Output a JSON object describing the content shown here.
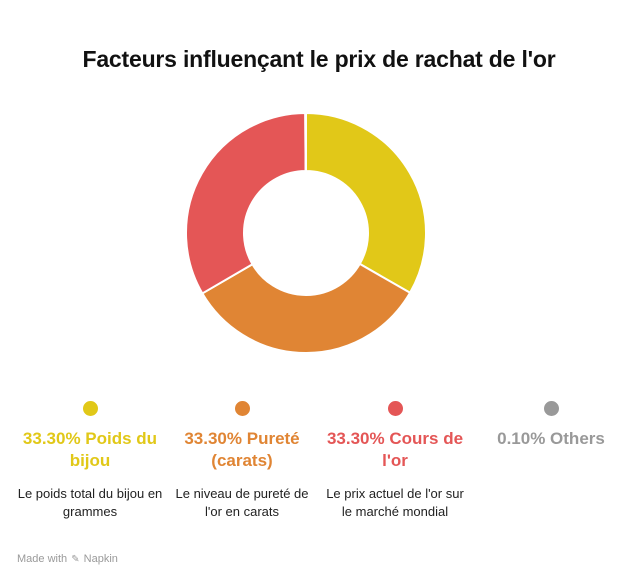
{
  "title": "Facteurs influençant le prix de rachat de l'or",
  "chart_data": {
    "type": "pie",
    "title": "Facteurs influençant le prix de rachat de l'or",
    "slices": [
      {
        "label": "Poids du bijou",
        "pct_label": "33.30% Poids du bijou",
        "value": 33.3,
        "color": "#e1c818",
        "description": "Le poids total du bijou en grammes"
      },
      {
        "label": "Pureté (carats)",
        "pct_label": "33.30% Pureté (carats)",
        "value": 33.3,
        "color": "#e08534",
        "description": "Le niveau de pureté de l'or en carats"
      },
      {
        "label": "Cours de l'or",
        "pct_label": "33.30% Cours de l'or",
        "value": 33.3,
        "color": "#e45656",
        "description": "Le prix actuel de l'or sur le marché mondial"
      },
      {
        "label": "Others",
        "pct_label": "0.10% Others",
        "value": 0.1,
        "color": "#999999",
        "description": ""
      }
    ]
  },
  "footer": {
    "prefix": "Made with",
    "brand": "Napkin",
    "icon": "napkin-logo-icon"
  }
}
